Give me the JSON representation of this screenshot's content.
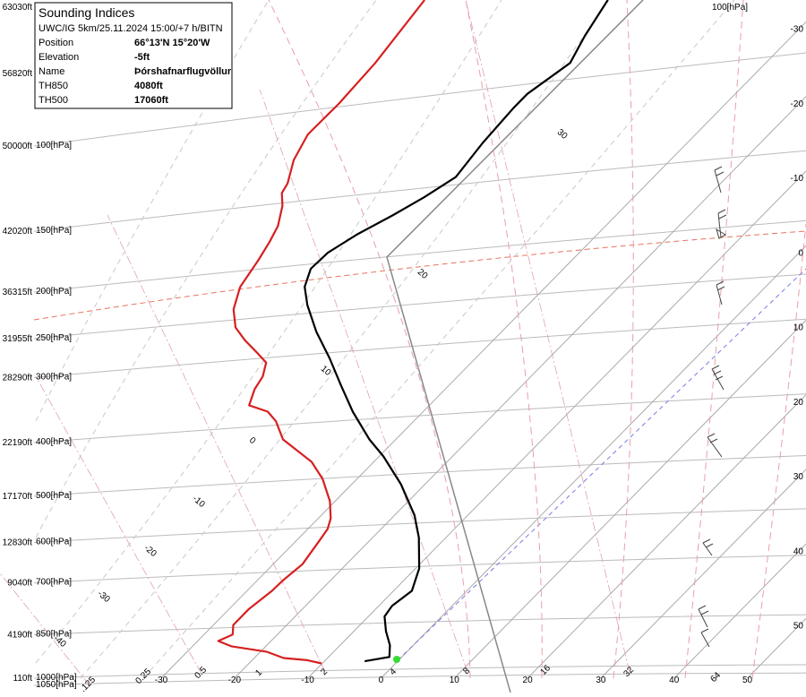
{
  "chart_data": {
    "type": "skewt",
    "title": "Sounding Indices",
    "subtitle": "UWC/IG 5km/25.11.2024 15:00/+7 h/BITN",
    "info": [
      {
        "label": "Position",
        "value": "66°13'N 15°20'W"
      },
      {
        "label": "Elevation",
        "value": "-5ft"
      },
      {
        "label": "Name",
        "value": "Þórshafnarflugvöllur"
      },
      {
        "label": "TH850",
        "value": "4080ft"
      },
      {
        "label": "TH500",
        "value": "17060ft"
      }
    ],
    "ylim": [
      110,
      63030
    ],
    "yticks": [
      {
        "value": 110,
        "label": "110ft"
      },
      {
        "value": 4190,
        "label": "4190ft"
      },
      {
        "value": 9040,
        "label": "9040ft"
      },
      {
        "value": 12830,
        "label": "12830ft"
      },
      {
        "value": 17170,
        "label": "17170ft"
      },
      {
        "value": 22190,
        "label": "22190ft"
      },
      {
        "value": 28290,
        "label": "28290ft"
      },
      {
        "value": 31955,
        "label": "31955ft"
      },
      {
        "value": 36315,
        "label": "36315ft"
      },
      {
        "value": 42020,
        "label": "42020ft"
      },
      {
        "value": 50000,
        "label": "50000ft"
      },
      {
        "value": 56820,
        "label": "56820ft"
      },
      {
        "value": 63030,
        "label": "63030ft"
      }
    ],
    "isobars": [
      {
        "value": -560,
        "label": "1050[hPa]"
      },
      {
        "value": 110,
        "label": "1000[hPa]"
      },
      {
        "value": 4190,
        "label": "850[hPa]"
      },
      {
        "value": 9040,
        "label": "700[hPa]"
      },
      {
        "value": 12830,
        "label": "600[hPa]"
      },
      {
        "value": 17170,
        "label": "500[hPa]"
      },
      {
        "value": 22190,
        "label": "400[hPa]"
      },
      {
        "value": 28290,
        "label": "300[hPa]"
      },
      {
        "value": 31955,
        "label": "250[hPa]"
      },
      {
        "value": 36315,
        "label": "200[hPa]"
      },
      {
        "value": 42020,
        "label": "150[hPa]"
      },
      {
        "value": 50000,
        "label": "100[hPa]"
      }
    ],
    "top_isobar_label": "100[hPa]",
    "xlim": [
      -52,
      58
    ],
    "xticks": [
      -30,
      -20,
      -10,
      0,
      10,
      20,
      30,
      40,
      50
    ],
    "adiabat_labels": [
      -40,
      -30,
      -20,
      -10,
      0,
      10,
      20,
      30
    ],
    "mixing_ratios": [
      {
        "value": 0.125,
        "label": ".125"
      },
      0.25,
      0.5,
      1,
      2,
      4,
      8,
      16,
      32,
      64
    ],
    "series": [
      {
        "color": "#000000",
        "heights": [
          1700,
          2100,
          3200,
          4500,
          5900,
          6900,
          8300,
          10400,
          13300,
          15400,
          18300,
          20900,
          22500,
          25100,
          27600,
          30100,
          32600,
          35100,
          36800,
          38500,
          40000,
          41700,
          43500,
          45200,
          47100,
          50300,
          53600,
          54900,
          57800,
          60300,
          63700
        ],
        "values": [
          -4.5,
          -1.7,
          -3.2,
          -5.6,
          -7.8,
          -8.2,
          -7.5,
          -9.5,
          -13.7,
          -17.3,
          -23.3,
          -29.4,
          -33.6,
          -39.6,
          -44.8,
          -49.9,
          -55.3,
          -60.1,
          -62.9,
          -64.5,
          -64.3,
          -62.8,
          -60.5,
          -58.6,
          -57.0,
          -57.9,
          -58.4,
          -58.4,
          -56.7,
          -58.3,
          -60.0
        ]
      },
      {
        "color": "#d62020",
        "heights": [
          1500,
          1800,
          2000,
          2600,
          3100,
          3600,
          4200,
          5100,
          6600,
          8300,
          9300,
          10800,
          12900,
          14100,
          15100,
          16700,
          18800,
          20400,
          22500,
          24200,
          25100,
          25700,
          27200,
          28400,
          29700,
          30500,
          31800,
          33000,
          34700,
          36800,
          39300,
          41000,
          42500,
          44400,
          45600,
          46500,
          48700,
          51100,
          54000,
          57800,
          63700
        ],
        "values": [
          -10.1,
          -12.5,
          -16.0,
          -19.2,
          -24.7,
          -27.2,
          -26.1,
          -27.3,
          -27.3,
          -26.6,
          -26.5,
          -26.0,
          -26.8,
          -27.3,
          -28.3,
          -30.7,
          -34.7,
          -38.5,
          -45.4,
          -48.8,
          -51.2,
          -54.6,
          -56.0,
          -56.6,
          -58.0,
          -60.2,
          -63.9,
          -66.9,
          -69.6,
          -71.7,
          -72.8,
          -73.7,
          -74.7,
          -76.8,
          -78.6,
          -79.1,
          -81.4,
          -82.9,
          -82.8,
          -83.3,
          -85.0
        ]
      }
    ]
  }
}
